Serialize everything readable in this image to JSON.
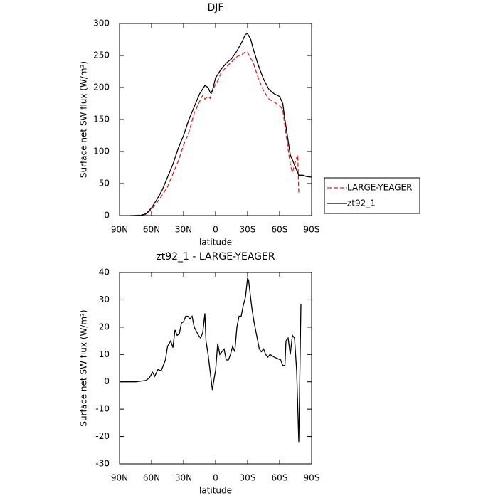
{
  "chart_data": [
    {
      "type": "line",
      "title": "DJF",
      "xlabel": "latitude",
      "ylabel": "Surface net SW flux (W/m²)",
      "xlim": [
        90,
        -90
      ],
      "xticks": [
        {
          "value": 90,
          "label": "90N"
        },
        {
          "value": 60,
          "label": "60N"
        },
        {
          "value": 30,
          "label": "30N"
        },
        0,
        {
          "value": -30,
          "label": "30S"
        },
        {
          "value": -60,
          "label": "60S"
        },
        {
          "value": -90,
          "label": "90S"
        }
      ],
      "ylim": [
        0,
        300
      ],
      "yticks": [
        0,
        50,
        100,
        150,
        200,
        250,
        300
      ],
      "legend": "right",
      "series": [
        {
          "name": "LARGE-YEAGER",
          "color": "#e8201e",
          "linestyle": "dashed",
          "x": [
            75,
            65,
            60,
            55,
            50,
            45,
            40,
            35,
            30,
            25,
            20,
            15,
            12,
            10,
            7,
            5,
            3,
            0,
            -2,
            -5,
            -10,
            -15,
            -20,
            -25,
            -28,
            -30,
            -33,
            -35,
            -40,
            -45,
            -50,
            -55,
            -60,
            -63,
            -65,
            -70,
            -72,
            -75,
            -77,
            -78
          ],
          "values": [
            0,
            2,
            10,
            20,
            32,
            45,
            65,
            85,
            110,
            130,
            160,
            178,
            188,
            182,
            186,
            183,
            195,
            205,
            210,
            222,
            232,
            240,
            248,
            252,
            256,
            255,
            245,
            240,
            215,
            195,
            182,
            177,
            172,
            165,
            140,
            80,
            67,
            85,
            95,
            35
          ]
        },
        {
          "name": "zt92_1",
          "color": "#000000",
          "linestyle": "solid",
          "x": [
            80,
            70,
            65,
            60,
            55,
            50,
            45,
            40,
            35,
            30,
            25,
            20,
            15,
            10,
            7,
            5,
            3,
            0,
            -5,
            -10,
            -15,
            -20,
            -25,
            -28,
            -30,
            -33,
            -35,
            -40,
            -45,
            -50,
            -55,
            -60,
            -63,
            -65,
            -70,
            -75,
            -78,
            -82,
            -85,
            -90
          ],
          "values": [
            0,
            0.5,
            3,
            12,
            25,
            40,
            60,
            80,
            105,
            125,
            150,
            170,
            190,
            203,
            200,
            192,
            195,
            215,
            228,
            238,
            245,
            257,
            272,
            283,
            284,
            275,
            262,
            235,
            213,
            197,
            190,
            186,
            175,
            150,
            95,
            75,
            63,
            63,
            61,
            60
          ]
        }
      ]
    },
    {
      "type": "line",
      "title": "zt92_1 - LARGE-YEAGER",
      "xlabel": "latitude",
      "ylabel": "Surface net SW flux (W/m²)",
      "xlim": [
        90,
        -90
      ],
      "xticks": [
        {
          "value": 90,
          "label": "90N"
        },
        {
          "value": 60,
          "label": "60N"
        },
        {
          "value": 30,
          "label": "30N"
        },
        0,
        {
          "value": -30,
          "label": "30S"
        },
        {
          "value": -60,
          "label": "60S"
        },
        {
          "value": -90,
          "label": "90S"
        }
      ],
      "ylim": [
        -30,
        40
      ],
      "yticks": [
        -30,
        -20,
        -10,
        0,
        10,
        20,
        30,
        40
      ],
      "series": [
        {
          "name": "zt92_1 - LARGE-YEAGER",
          "color": "#000000",
          "linestyle": "solid",
          "x": [
            90,
            75,
            65,
            62,
            59,
            57,
            54,
            51,
            49,
            47,
            45,
            42,
            40,
            38,
            36,
            34,
            32,
            30,
            28,
            26,
            24,
            22,
            20,
            16,
            14,
            12,
            10,
            9,
            7,
            3,
            1,
            0,
            -2,
            -4,
            -6,
            -8,
            -10,
            -12,
            -14,
            -16,
            -18,
            -20,
            -22,
            -24,
            -26,
            -28,
            -30,
            -31,
            -34,
            -36,
            -38,
            -41,
            -43,
            -45,
            -47,
            -49,
            -51,
            -55,
            -58,
            -61,
            -63,
            -65,
            -66,
            -68,
            -70,
            -72,
            -74,
            -76,
            -78,
            -80
          ],
          "values": [
            0,
            0,
            0.5,
            1.5,
            3.5,
            2,
            4.5,
            4,
            6,
            8,
            13,
            15,
            12.5,
            19,
            17,
            17.5,
            21.5,
            22,
            24,
            24,
            23,
            24,
            20,
            17,
            16,
            18,
            25,
            15,
            10,
            -3,
            2,
            4,
            14,
            10,
            11,
            12,
            8,
            8,
            10,
            13,
            11,
            20,
            24,
            24,
            28,
            31,
            38,
            37,
            27,
            22,
            18,
            12,
            11,
            12,
            10,
            9,
            10,
            9,
            8.5,
            8,
            6,
            6,
            15,
            16,
            10,
            17,
            16,
            4,
            -22,
            28.5
          ]
        }
      ]
    }
  ]
}
